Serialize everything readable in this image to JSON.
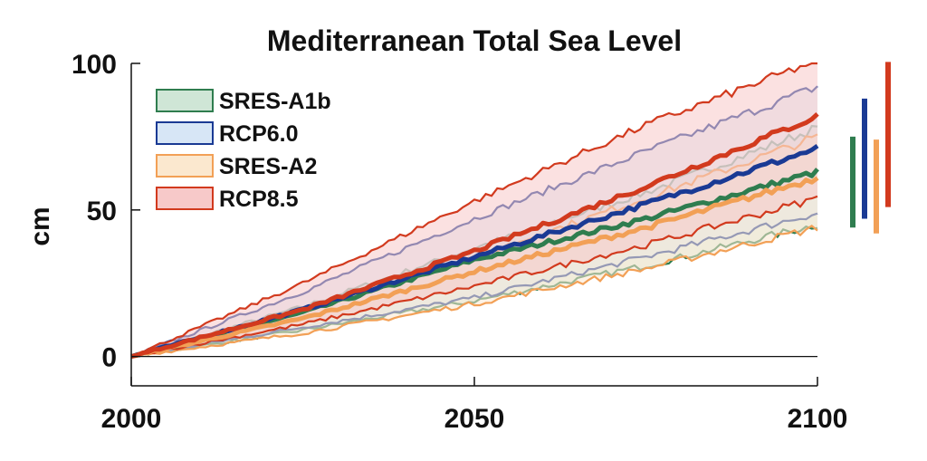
{
  "chart_data": {
    "type": "line",
    "title": "Mediterranean Total Sea Level",
    "xlabel": "",
    "ylabel": "cm",
    "xlim": [
      2000,
      2100
    ],
    "ylim": [
      -10,
      100
    ],
    "x_ticks": [
      "2000",
      "2050",
      "2100"
    ],
    "y_ticks": [
      "0",
      "50",
      "100"
    ],
    "legend_position": "top-left",
    "series": [
      {
        "name": "SRES-A1b",
        "color": "#2f7d4f",
        "fill": "#cfe6d6",
        "x": [
          2000,
          2025,
          2050,
          2075,
          2100
        ],
        "median": [
          0,
          15,
          33,
          47,
          63
        ],
        "lower": [
          0,
          9,
          19,
          31,
          45
        ],
        "upper": [
          0,
          17,
          37,
          56,
          78
        ]
      },
      {
        "name": "RCP6.0",
        "color": "#1a3a94",
        "fill": "#d7e6f6",
        "x": [
          2000,
          2025,
          2050,
          2075,
          2100
        ],
        "median": [
          0,
          16,
          34,
          52,
          71
        ],
        "lower": [
          0,
          10,
          20,
          34,
          49
        ],
        "upper": [
          0,
          22,
          47,
          70,
          92
        ]
      },
      {
        "name": "SRES-A2",
        "color": "#f2a056",
        "fill": "#fbe8cf",
        "x": [
          2000,
          2025,
          2050,
          2075,
          2100
        ],
        "median": [
          0,
          13,
          29,
          44,
          61
        ],
        "lower": [
          0,
          8,
          18,
          30,
          44
        ],
        "upper": [
          0,
          16,
          34,
          54,
          75
        ]
      },
      {
        "name": "RCP8.5",
        "color": "#d23a1e",
        "fill": "#f7c9c9",
        "x": [
          2000,
          2025,
          2050,
          2075,
          2100
        ],
        "median": [
          0,
          16,
          36,
          58,
          82
        ],
        "lower": [
          0,
          11,
          24,
          38,
          54
        ],
        "upper": [
          0,
          25,
          53,
          79,
          101
        ]
      }
    ],
    "range_bars": [
      {
        "series": "SRES-A1b",
        "color": "#2f7d4f",
        "low": 44,
        "high": 75
      },
      {
        "series": "RCP6.0",
        "color": "#1a3a94",
        "low": 47,
        "high": 88
      },
      {
        "series": "SRES-A2",
        "color": "#f2a056",
        "low": 42,
        "high": 74
      },
      {
        "series": "RCP8.5",
        "color": "#d23a1e",
        "low": 51,
        "high": 101
      }
    ]
  }
}
